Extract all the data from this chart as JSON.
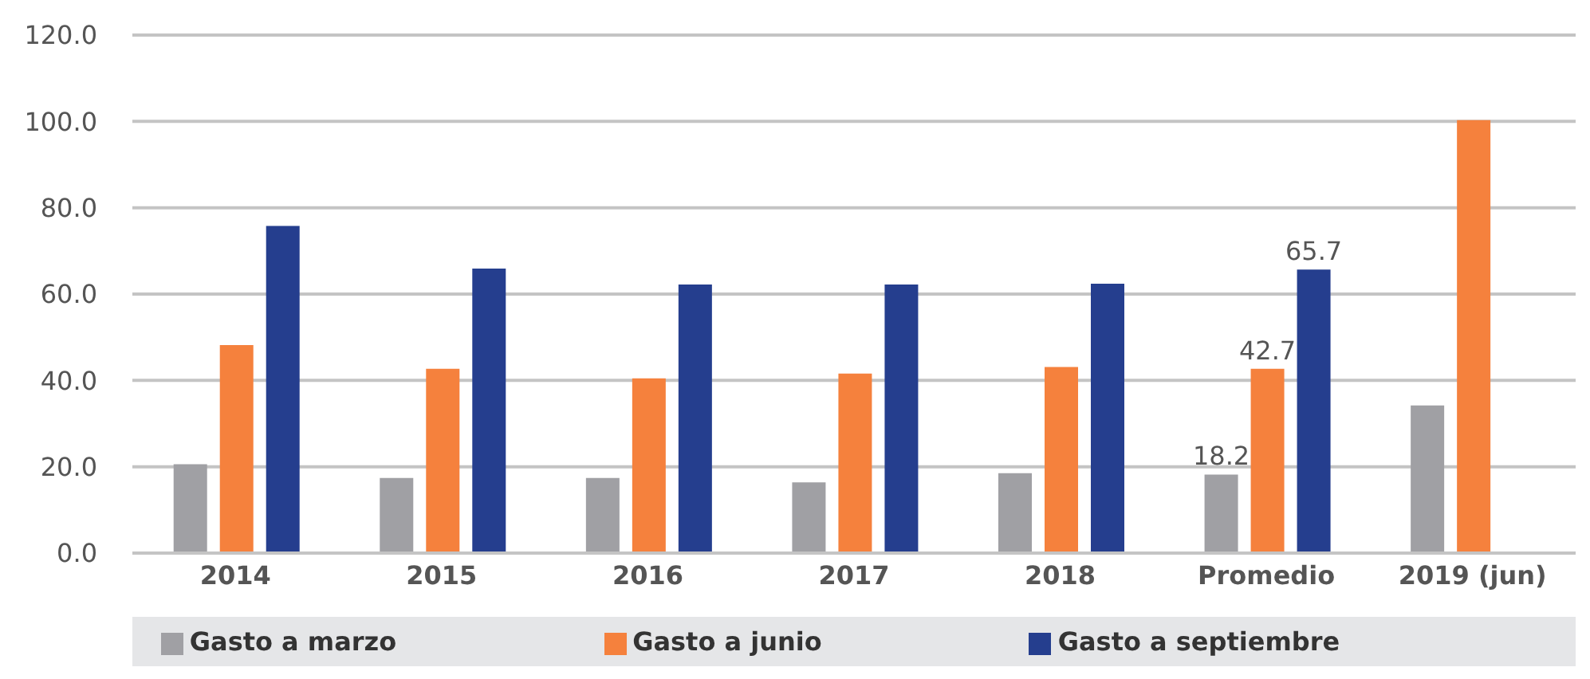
{
  "chart_data": {
    "type": "bar",
    "categories": [
      "2014",
      "2015",
      "2016",
      "2017",
      "2018",
      "Promedio",
      "2019 (jun)"
    ],
    "series": [
      {
        "name": "Gasto a marzo",
        "color": "#a0a0a4",
        "values": [
          20.6,
          17.4,
          17.4,
          16.4,
          18.5,
          18.2,
          34.2
        ],
        "value_labels": [
          null,
          null,
          null,
          null,
          null,
          "18.2",
          null
        ]
      },
      {
        "name": "Gasto a junio",
        "color": "#f5813d",
        "values": [
          48.2,
          42.7,
          40.5,
          41.6,
          43.1,
          42.7,
          100.3
        ],
        "value_labels": [
          null,
          null,
          null,
          null,
          null,
          "42.7",
          null
        ]
      },
      {
        "name": "Gasto a septiembre",
        "color": "#253e8e",
        "values": [
          75.8,
          65.9,
          62.2,
          62.2,
          62.4,
          65.7,
          null
        ],
        "value_labels": [
          null,
          null,
          null,
          null,
          null,
          "65.7",
          null
        ]
      }
    ],
    "ylim": [
      0,
      120
    ],
    "yticks": [
      {
        "value": 0,
        "label": "0.0"
      },
      {
        "value": 20,
        "label": "20.0"
      },
      {
        "value": 40,
        "label": "40.0"
      },
      {
        "value": 60,
        "label": "60.0"
      },
      {
        "value": 80,
        "label": "80.0"
      },
      {
        "value": 100,
        "label": "100.0"
      },
      {
        "value": 120,
        "label": "120.0"
      }
    ],
    "grid": "y",
    "legend": "bottom"
  }
}
